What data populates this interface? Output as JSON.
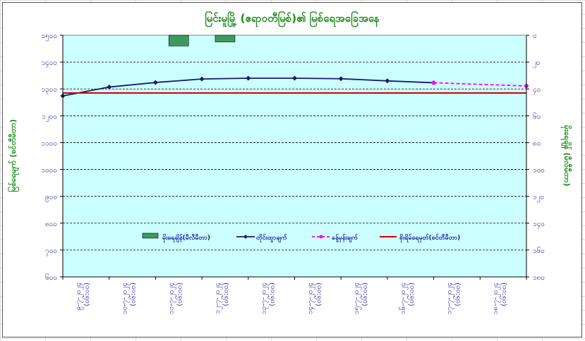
{
  "chart_data": {
    "type": "line",
    "title": "မြင်းမူမြို့ (ဧရာဝတီမြစ်)၏ မြစ်ရေအခြေအနေ",
    "ylabel_left": "မြစ်ရေမျက် (စင်တီမီတာ)",
    "ylabel_right": "မိုးရေချိန် (မီလီမီတာ)",
    "y_left_range": [
      600,
      1500
    ],
    "y_left_ticks": [
      "၆၀၀",
      "၇၀၀",
      "၈၀၀",
      "၉၀၀",
      "၁၀၀၀",
      "၁၁၀၀",
      "၁၂၀၀",
      "၁၃၀၀",
      "၁၄၀၀",
      "၁၅၀၀"
    ],
    "y_right_range": [
      0,
      180
    ],
    "y_right_ticks": [
      "၀",
      "၂၀",
      "၄၀",
      "၆၀",
      "၈၀",
      "၁၀၀",
      "၁၂၀",
      "၁၄၀",
      "၁၆၀",
      "၁၈၀"
    ],
    "categories": [
      {
        "date": "၉-၇-၂၀၂၄",
        "note": "(၀၆:၀၀)"
      },
      {
        "date": "၁၀-၇-၂၀၂၄",
        "note": "(၀၆:၀၀)"
      },
      {
        "date": "၁၁-၇-၂၀၂၄",
        "note": "(၀၆:၀၀)"
      },
      {
        "date": "၁၂-၇-၂၀၂၄",
        "note": "(၀၆:၀၀)"
      },
      {
        "date": "၁၃-၇-၂၀၂၄",
        "note": "(၀၆:၀၀)"
      },
      {
        "date": "၁၄-၇-၂၀၂၄",
        "note": "(၀၆:၀၀)"
      },
      {
        "date": "၁၅-၇-၂၀၂၄",
        "note": "(၀၆:၀၀)"
      },
      {
        "date": "၁၆-၇-၂၀၂၄",
        "note": "(၀၆:၀၀)"
      },
      {
        "date": "၁၇-၇-၂၀၂၄",
        "note": "(၀၆:၀၀)"
      },
      {
        "date": "၁၈-၇-၂၀၂၄",
        "note": "(၀၆:၀၀)"
      }
    ],
    "series": [
      {
        "name": "မိုးရေချိန်(မီလီမီတာ)",
        "kind": "bar",
        "axis": "right",
        "color": "#3c9a5f",
        "values": [
          0,
          0,
          8,
          5,
          0,
          0,
          0,
          0,
          0,
          0
        ]
      },
      {
        "name": "တိုင်းထွာချက်",
        "kind": "line",
        "axis": "left",
        "color": "#1a1a6e",
        "values": [
          1274,
          1307,
          1324,
          1337,
          1340,
          1340,
          1338,
          1330,
          1323,
          null
        ]
      },
      {
        "name": "ခန့်မှန်းချက်",
        "kind": "dashed",
        "axis": "left",
        "color": "#ff00ff",
        "values": [
          null,
          null,
          null,
          null,
          null,
          null,
          null,
          null,
          1323,
          1311
        ]
      },
      {
        "name": "စိုးရိမ်ရေမှတ်(စင်တီမီတာ)",
        "kind": "hline",
        "axis": "left",
        "color": "#d00000",
        "value": 1285
      }
    ],
    "legend_position": "bottom-inside",
    "grid": true
  }
}
